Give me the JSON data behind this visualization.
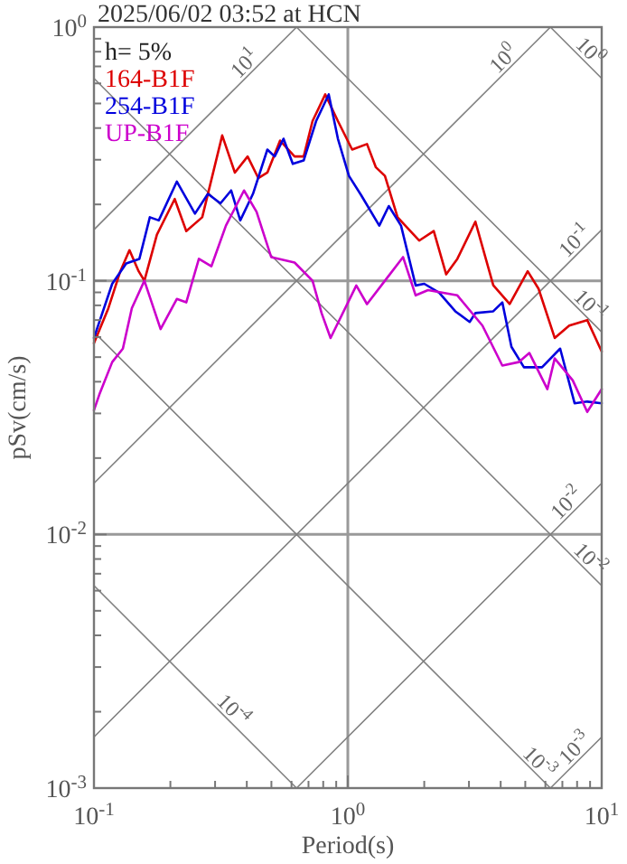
{
  "chart_data": {
    "type": "line",
    "title": "2025/06/02 03:52 at HCN",
    "xlabel": "Period(s)",
    "ylabel": "pSv(cm/s)",
    "log": "xy",
    "grid": true,
    "legend": "top left",
    "xlim": [
      0.1,
      10
    ],
    "ylim": [
      0.001,
      1
    ],
    "xticks": [
      {
        "value": 0.1,
        "label": "10$^{-1}$"
      },
      {
        "value": 0.2,
        "label": null
      },
      {
        "value": 0.3,
        "label": null
      },
      {
        "value": 0.4,
        "label": null
      },
      {
        "value": 0.5,
        "label": null
      },
      {
        "value": 0.6,
        "label": null
      },
      {
        "value": 0.7,
        "label": null
      },
      {
        "value": 0.8,
        "label": null
      },
      {
        "value": 0.9,
        "label": null
      },
      {
        "value": 1,
        "label": "10$^{0}$"
      },
      {
        "value": 2,
        "label": null
      },
      {
        "value": 3,
        "label": null
      },
      {
        "value": 4,
        "label": null
      },
      {
        "value": 5,
        "label": null
      },
      {
        "value": 6,
        "label": null
      },
      {
        "value": 7,
        "label": null
      },
      {
        "value": 8,
        "label": null
      },
      {
        "value": 9,
        "label": null
      },
      {
        "value": 10,
        "label": "10$^{1}$"
      }
    ],
    "yticks": [
      {
        "value": 0.001,
        "label": "10$^{-3}$"
      },
      {
        "value": 0.002,
        "label": null
      },
      {
        "value": 0.003,
        "label": null
      },
      {
        "value": 0.004,
        "label": null
      },
      {
        "value": 0.005,
        "label": null
      },
      {
        "value": 0.006,
        "label": null
      },
      {
        "value": 0.007,
        "label": null
      },
      {
        "value": 0.008,
        "label": null
      },
      {
        "value": 0.009,
        "label": null
      },
      {
        "value": 0.01,
        "label": "10$^{-2}$"
      },
      {
        "value": 0.02,
        "label": null
      },
      {
        "value": 0.03,
        "label": null
      },
      {
        "value": 0.04,
        "label": null
      },
      {
        "value": 0.05,
        "label": null
      },
      {
        "value": 0.06,
        "label": null
      },
      {
        "value": 0.07,
        "label": null
      },
      {
        "value": 0.08,
        "label": null
      },
      {
        "value": 0.09,
        "label": null
      },
      {
        "value": 0.1,
        "label": "10$^{-1}$"
      },
      {
        "value": 0.2,
        "label": null
      },
      {
        "value": 0.3,
        "label": null
      },
      {
        "value": 0.4,
        "label": null
      },
      {
        "value": 0.5,
        "label": null
      },
      {
        "value": 0.6,
        "label": null
      },
      {
        "value": 0.7,
        "label": null
      },
      {
        "value": 0.8,
        "label": null
      },
      {
        "value": 0.9,
        "label": null
      },
      {
        "value": 1,
        "label": "10$^{0}$"
      }
    ],
    "annotations": [
      "h= 5%",
      {
        "text": "10$^{1}$",
        "x": 0.42,
        "y": 0.67
      },
      {
        "text": "10$^{0}$",
        "x": 4.4,
        "y": 0.7
      },
      {
        "text": "10$^{0}$",
        "x": 8.4,
        "y": 0.75
      },
      {
        "text": "10$^{-1}$",
        "x": 8.4,
        "y": 0.134
      },
      {
        "text": "10$^{-1}$",
        "x": 8.4,
        "y": 0.0748
      },
      {
        "text": "10$^{-2}$",
        "x": 7.8,
        "y": 0.0124
      },
      {
        "text": "10$^{-2}$",
        "x": 8.4,
        "y": 0.00748
      },
      {
        "text": "10$^{-3}$",
        "x": 8.4,
        "y": 0.00134
      },
      {
        "text": "10$^{-3}$",
        "x": 5.3,
        "y": 0.00118
      },
      {
        "text": "10$^{-4}$",
        "x": 0.33,
        "y": 0.0019
      }
    ],
    "series": [
      {
        "color": "#808080",
        "x": [
          0.1,
          0.628
        ],
        "values": [
          0.159,
          1
        ]
      },
      {
        "color": "#808080",
        "x": [
          0.1,
          6.28
        ],
        "values": [
          0.0159,
          1
        ]
      },
      {
        "color": "#808080",
        "x": [
          0.1,
          10
        ],
        "values": [
          0.00159,
          0.159
        ]
      },
      {
        "color": "#808080",
        "x": [
          0.628,
          10
        ],
        "values": [
          0.001,
          0.0159
        ]
      },
      {
        "color": "#808080",
        "x": [
          6.28,
          10
        ],
        "values": [
          0.001,
          0.00159
        ]
      },
      {
        "color": "#808080",
        "x": [
          6.28,
          10
        ],
        "values": [
          1,
          0.628
        ]
      },
      {
        "color": "#808080",
        "x": [
          0.628,
          10
        ],
        "values": [
          1,
          0.0628
        ]
      },
      {
        "color": "#808080",
        "x": [
          0.1,
          10
        ],
        "values": [
          0.628,
          0.00628
        ]
      },
      {
        "color": "#808080",
        "x": [
          0.1,
          6.28
        ],
        "values": [
          0.0628,
          0.001
        ]
      },
      {
        "color": "#808080",
        "x": [
          0.1,
          0.628
        ],
        "values": [
          0.00628,
          0.001
        ]
      },
      {
        "name": "164-B1F",
        "color": "#dd0000",
        "x": [
          0.1,
          0.114,
          0.127,
          0.138,
          0.15,
          0.158,
          0.177,
          0.208,
          0.231,
          0.267,
          0.32,
          0.359,
          0.403,
          0.444,
          0.482,
          0.541,
          0.617,
          0.67,
          0.726,
          0.815,
          0.914,
          1.04,
          1.19,
          1.29,
          1.4,
          1.57,
          1.91,
          2.18,
          2.44,
          2.7,
          3.18,
          3.74,
          4.34,
          5.11,
          5.64,
          6.53,
          7.45,
          8.77,
          10
        ],
        "values": [
          0.0567,
          0.078,
          0.109,
          0.132,
          0.109,
          0.1,
          0.152,
          0.21,
          0.157,
          0.178,
          0.374,
          0.267,
          0.309,
          0.254,
          0.267,
          0.357,
          0.309,
          0.309,
          0.426,
          0.543,
          0.426,
          0.329,
          0.346,
          0.28,
          0.259,
          0.178,
          0.144,
          0.157,
          0.106,
          0.122,
          0.171,
          0.096,
          0.081,
          0.109,
          0.093,
          0.0595,
          0.0666,
          0.07,
          0.0526
        ]
      },
      {
        "name": "254-B1F",
        "color": "#0000dd",
        "x": [
          0.1,
          0.118,
          0.134,
          0.151,
          0.166,
          0.18,
          0.212,
          0.25,
          0.281,
          0.315,
          0.347,
          0.377,
          0.423,
          0.482,
          0.515,
          0.558,
          0.607,
          0.67,
          0.75,
          0.841,
          0.914,
          1.01,
          1.13,
          1.33,
          1.45,
          1.62,
          1.85,
          2.0,
          2.29,
          2.65,
          3.02,
          3.18,
          3.74,
          4.06,
          4.41,
          4.94,
          5.82,
          6.86,
          7.82,
          8.77,
          10
        ],
        "values": [
          0.0595,
          0.0973,
          0.117,
          0.122,
          0.178,
          0.173,
          0.246,
          0.184,
          0.22,
          0.202,
          0.227,
          0.173,
          0.22,
          0.329,
          0.309,
          0.363,
          0.289,
          0.298,
          0.426,
          0.543,
          0.363,
          0.259,
          0.217,
          0.165,
          0.197,
          0.165,
          0.0958,
          0.0973,
          0.0898,
          0.0758,
          0.0688,
          0.0746,
          0.0758,
          0.0822,
          0.0549,
          0.0456,
          0.0456,
          0.054,
          0.0329,
          0.0334,
          0.0329
        ]
      },
      {
        "name": "UP-B1F",
        "color": "#cc00cc",
        "x": [
          0.1,
          0.105,
          0.118,
          0.13,
          0.141,
          0.158,
          0.183,
          0.212,
          0.231,
          0.259,
          0.29,
          0.331,
          0.39,
          0.437,
          0.499,
          0.617,
          0.726,
          0.788,
          0.855,
          1.08,
          1.19,
          1.4,
          1.65,
          1.85,
          2.07,
          2.7,
          3.39,
          4.06,
          4.71,
          5.19,
          6.11,
          6.53,
          7.69,
          8.77,
          10
        ],
        "values": [
          0.0309,
          0.0356,
          0.0478,
          0.054,
          0.078,
          0.1,
          0.0645,
          0.0848,
          0.0822,
          0.122,
          0.114,
          0.165,
          0.227,
          0.187,
          0.124,
          0.118,
          0.1,
          0.0746,
          0.0595,
          0.0958,
          0.0809,
          0.1,
          0.124,
          0.0876,
          0.0919,
          0.0876,
          0.0666,
          0.0463,
          0.0478,
          0.0519,
          0.0374,
          0.0494,
          0.0405,
          0.0304,
          0.0374
        ]
      }
    ]
  }
}
